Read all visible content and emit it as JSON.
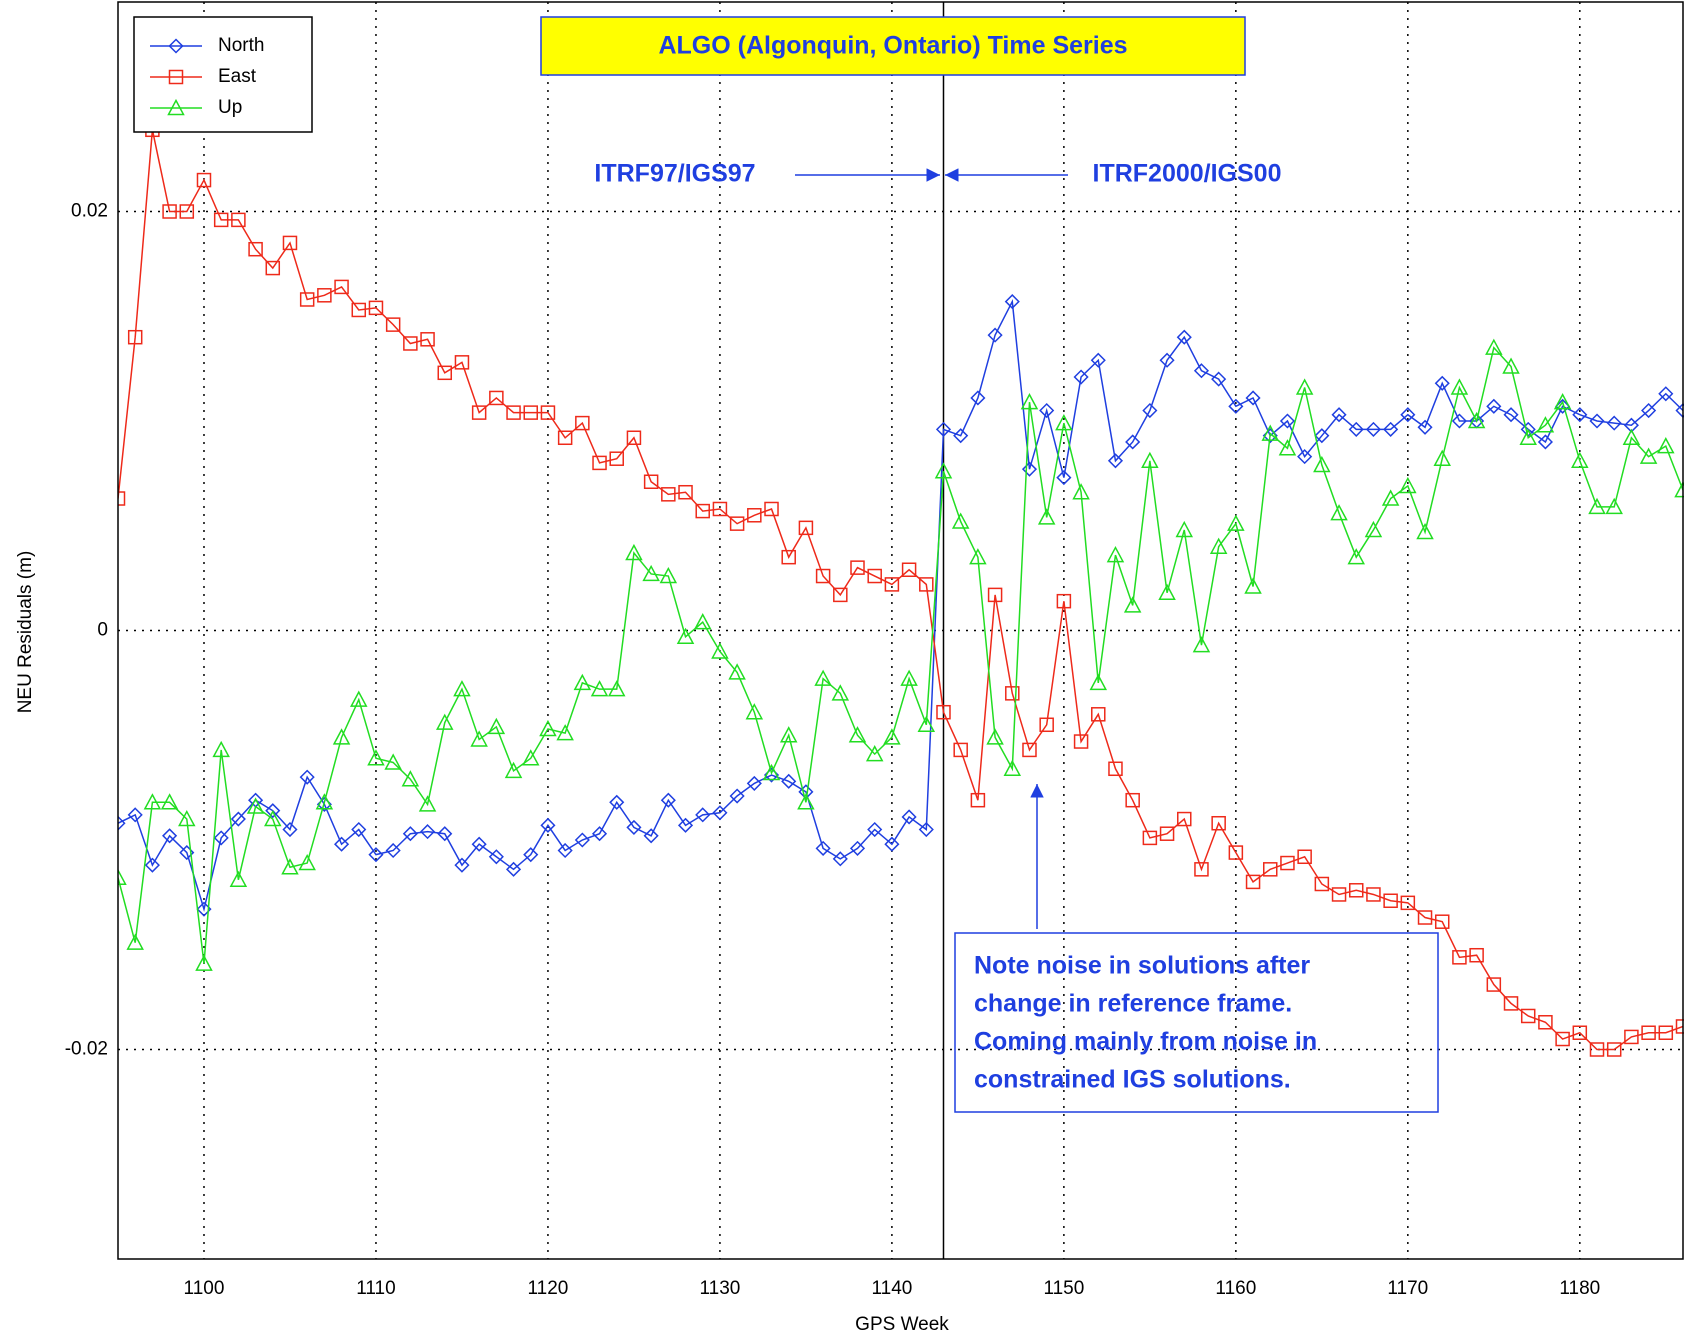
{
  "chart_data": {
    "type": "line",
    "title": "ALGO (Algonquin, Ontario) Time Series",
    "xlabel": "GPS Week",
    "ylabel": "NEU Residuals (m)",
    "x": [
      1095,
      1096,
      1097,
      1098,
      1099,
      1100,
      1101,
      1102,
      1103,
      1104,
      1105,
      1106,
      1107,
      1108,
      1109,
      1110,
      1111,
      1112,
      1113,
      1114,
      1115,
      1116,
      1117,
      1118,
      1119,
      1120,
      1121,
      1122,
      1123,
      1124,
      1125,
      1126,
      1127,
      1128,
      1129,
      1130,
      1131,
      1132,
      1133,
      1134,
      1135,
      1136,
      1137,
      1138,
      1139,
      1140,
      1141,
      1142,
      1143,
      1144,
      1145,
      1146,
      1147,
      1148,
      1149,
      1150,
      1151,
      1152,
      1153,
      1154,
      1155,
      1156,
      1157,
      1158,
      1159,
      1160,
      1161,
      1162,
      1163,
      1164,
      1165,
      1166,
      1167,
      1168,
      1169,
      1170,
      1171,
      1172,
      1173,
      1174,
      1175,
      1176,
      1177,
      1178,
      1179,
      1180,
      1181,
      1182,
      1183,
      1184,
      1185,
      1186
    ],
    "series": [
      {
        "name": "North",
        "color": "#1f3fe0",
        "marker": "diamond",
        "values": [
          -0.0092,
          -0.0088,
          -0.0112,
          -0.0098,
          -0.0106,
          -0.0133,
          -0.0099,
          -0.009,
          -0.0081,
          -0.0086,
          -0.0095,
          -0.007,
          -0.0083,
          -0.0102,
          -0.0095,
          -0.0107,
          -0.0105,
          -0.0097,
          -0.0096,
          -0.0097,
          -0.0112,
          -0.0102,
          -0.0108,
          -0.0114,
          -0.0107,
          -0.0093,
          -0.0105,
          -0.01,
          -0.0097,
          -0.0082,
          -0.0094,
          -0.0098,
          -0.0081,
          -0.0093,
          -0.0088,
          -0.0087,
          -0.0079,
          -0.0073,
          -0.0069,
          -0.0072,
          -0.0077,
          -0.0104,
          -0.0109,
          -0.0104,
          -0.0095,
          -0.0102,
          -0.0089,
          -0.0095,
          0.0096,
          0.0093,
          0.0111,
          0.0141,
          0.0157,
          0.0077,
          0.0105,
          0.0073,
          0.0121,
          0.0129,
          0.0081,
          0.009,
          0.0105,
          0.0129,
          0.014,
          0.0124,
          0.012,
          0.0107,
          0.0111,
          0.0093,
          0.01,
          0.0083,
          0.0093,
          0.0103,
          0.0096,
          0.0096,
          0.0096,
          0.0103,
          0.0097,
          0.0118,
          0.01,
          0.01,
          0.0107,
          0.0103,
          0.0096,
          0.009,
          0.0107,
          0.0103,
          0.01,
          0.0099,
          0.0098,
          0.0105,
          0.0113,
          0.0105
        ]
      },
      {
        "name": "East",
        "color": "#ee2a1a",
        "marker": "square",
        "values": [
          0.0063,
          0.014,
          0.0239,
          0.02,
          0.02,
          0.0215,
          0.0196,
          0.0196,
          0.0182,
          0.0173,
          0.0185,
          0.0158,
          0.016,
          0.0164,
          0.0153,
          0.0154,
          0.0146,
          0.0137,
          0.0139,
          0.0123,
          0.0128,
          0.0104,
          0.0111,
          0.0104,
          0.0104,
          0.0104,
          0.0092,
          0.0099,
          0.008,
          0.0082,
          0.0092,
          0.0071,
          0.0065,
          0.0066,
          0.0057,
          0.0058,
          0.0051,
          0.0055,
          0.0058,
          0.0035,
          0.0049,
          0.0026,
          0.0017,
          0.003,
          0.0026,
          0.0022,
          0.0029,
          0.0022,
          -0.0039,
          -0.0057,
          -0.0081,
          0.0017,
          -0.003,
          -0.0057,
          -0.0045,
          0.0014,
          -0.0053,
          -0.004,
          -0.0066,
          -0.0081,
          -0.0099,
          -0.0097,
          -0.009,
          -0.0114,
          -0.0092,
          -0.0106,
          -0.012,
          -0.0114,
          -0.0111,
          -0.0108,
          -0.0121,
          -0.0126,
          -0.0124,
          -0.0126,
          -0.0129,
          -0.013,
          -0.0137,
          -0.0139,
          -0.0156,
          -0.0155,
          -0.0169,
          -0.0178,
          -0.0184,
          -0.0187,
          -0.0195,
          -0.0192,
          -0.02,
          -0.02,
          -0.0194,
          -0.0192,
          -0.0192,
          -0.0189
        ]
      },
      {
        "name": "Up",
        "color": "#22dd22",
        "marker": "triangle",
        "values": [
          -0.0118,
          -0.0149,
          -0.0082,
          -0.0082,
          -0.009,
          -0.0159,
          -0.0057,
          -0.0119,
          -0.0084,
          -0.009,
          -0.0113,
          -0.0111,
          -0.0082,
          -0.0051,
          -0.0033,
          -0.0061,
          -0.0063,
          -0.0071,
          -0.0083,
          -0.0044,
          -0.0028,
          -0.0052,
          -0.0046,
          -0.0067,
          -0.0061,
          -0.0047,
          -0.0049,
          -0.0025,
          -0.0028,
          -0.0028,
          0.0037,
          0.0027,
          0.0026,
          -0.0003,
          0.0004,
          -0.001,
          -0.002,
          -0.0039,
          -0.0068,
          -0.005,
          -0.0082,
          -0.0023,
          -0.003,
          -0.005,
          -0.0059,
          -0.0051,
          -0.0023,
          -0.0045,
          0.0076,
          0.0052,
          0.0035,
          -0.0051,
          -0.0066,
          0.0109,
          0.0054,
          0.0099,
          0.0066,
          -0.0025,
          0.0036,
          0.0012,
          0.0081,
          0.0018,
          0.0048,
          -0.0007,
          0.004,
          0.0051,
          0.0021,
          0.0094,
          0.0087,
          0.0116,
          0.0079,
          0.0056,
          0.0035,
          0.0048,
          0.0063,
          0.0069,
          0.0047,
          0.0082,
          0.0116,
          0.01,
          0.0135,
          0.0126,
          0.0092,
          0.0098,
          0.0109,
          0.0081,
          0.0059,
          0.0059,
          0.0092,
          0.0083,
          0.0088,
          0.0067
        ]
      }
    ],
    "xlim": [
      1095,
      1186
    ],
    "ylim": [
      -0.03,
      0.03
    ],
    "xticks": [
      1100,
      1110,
      1120,
      1130,
      1140,
      1150,
      1160,
      1170,
      1180
    ],
    "yticks": [
      -0.02,
      0,
      0.02
    ],
    "grid": true,
    "legend": "upper left",
    "vline": 1143,
    "annotations": {
      "left_frame": "ITRF97/IGS97",
      "right_frame": "ITRF2000/IGS00",
      "note": [
        "Note noise in solutions after",
        "change in reference frame.",
        "Coming mainly from noise in",
        "constrained IGS solutions."
      ]
    }
  }
}
